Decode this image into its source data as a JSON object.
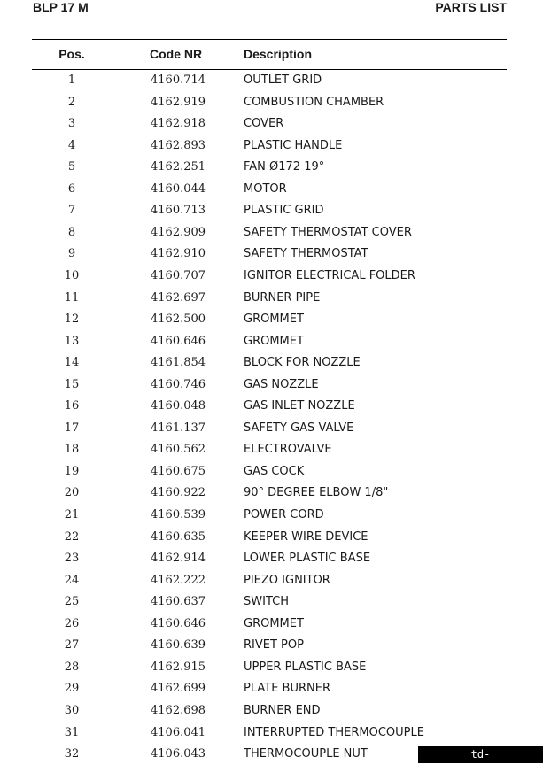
{
  "header": {
    "title": "BLP 17 M",
    "section": "PARTS LIST"
  },
  "table": {
    "columns": [
      "Pos.",
      "Code NR",
      "Description"
    ],
    "rows": [
      [
        "1",
        "4160.714",
        "OUTLET GRID"
      ],
      [
        "2",
        "4162.919",
        "COMBUSTION CHAMBER"
      ],
      [
        "3",
        "4162.918",
        "COVER"
      ],
      [
        "4",
        "4162.893",
        "PLASTIC HANDLE"
      ],
      [
        "5",
        "4162.251",
        "FAN Ø172 19°"
      ],
      [
        "6",
        "4160.044",
        "MOTOR"
      ],
      [
        "7",
        "4160.713",
        "PLASTIC GRID"
      ],
      [
        "8",
        "4162.909",
        "SAFETY THERMOSTAT COVER"
      ],
      [
        "9",
        "4162.910",
        "SAFETY THERMOSTAT"
      ],
      [
        "10",
        "4160.707",
        "IGNITOR ELECTRICAL FOLDER"
      ],
      [
        "11",
        "4162.697",
        "BURNER PIPE"
      ],
      [
        "12",
        "4162.500",
        "GROMMET"
      ],
      [
        "13",
        "4160.646",
        "GROMMET"
      ],
      [
        "14",
        "4161.854",
        "BLOCK FOR NOZZLE"
      ],
      [
        "15",
        "4160.746",
        "GAS NOZZLE"
      ],
      [
        "16",
        "4160.048",
        "GAS INLET NOZZLE"
      ],
      [
        "17",
        "4161.137",
        "SAFETY GAS VALVE"
      ],
      [
        "18",
        "4160.562",
        "ELECTROVALVE"
      ],
      [
        "19",
        "4160.675",
        "GAS COCK"
      ],
      [
        "20",
        "4160.922",
        "90° DEGREE ELBOW 1/8\""
      ],
      [
        "21",
        "4160.539",
        "POWER CORD"
      ],
      [
        "22",
        "4160.635",
        "KEEPER WIRE DEVICE"
      ],
      [
        "23",
        "4162.914",
        "LOWER PLASTIC BASE"
      ],
      [
        "24",
        "4162.222",
        "PIEZO IGNITOR"
      ],
      [
        "25",
        "4160.637",
        "SWITCH"
      ],
      [
        "26",
        "4160.646",
        "GROMMET"
      ],
      [
        "27",
        "4160.639",
        "RIVET POP"
      ],
      [
        "28",
        "4162.915",
        "UPPER PLASTIC BASE"
      ],
      [
        "29",
        "4162.699",
        "PLATE BURNER"
      ],
      [
        "30",
        "4162.698",
        "BURNER END"
      ],
      [
        "31",
        "4106.041",
        "INTERRUPTED THERMOCOUPLE"
      ],
      [
        "32",
        "4106.043",
        "THERMOCOUPLE NUT"
      ]
    ]
  },
  "watermark": "td-favoryt.agrobiz.net"
}
